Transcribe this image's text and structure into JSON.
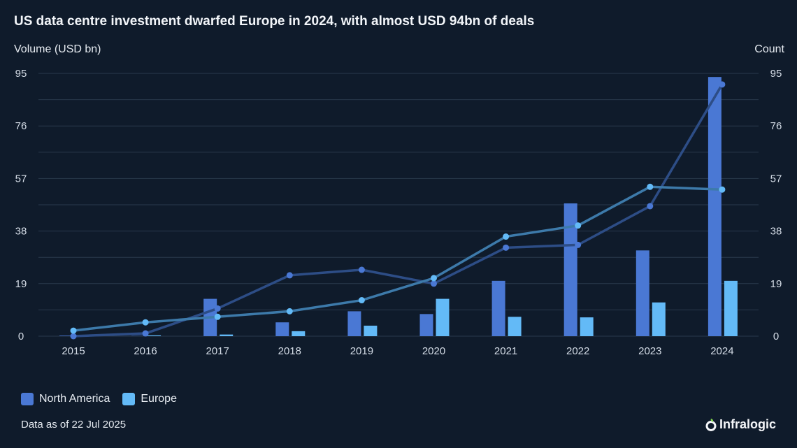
{
  "title": "US data centre investment dwarfed Europe in 2024, with almost USD 94bn of deals",
  "footnote": "Data as of 22 Jul 2025",
  "brand": "Infralogic",
  "colors": {
    "background": "#0f1b2b",
    "grid": "#2a3a4d",
    "north_america_bar": "#4a78d4",
    "europe_bar": "#63baf7",
    "north_america_line": "#2d4d86",
    "europe_line": "#3d7aaa",
    "north_america_point": "#4a78d4",
    "europe_point": "#63baf7"
  },
  "chart_data": {
    "type": "bar",
    "x": [
      2015,
      2016,
      2017,
      2018,
      2019,
      2020,
      2021,
      2022,
      2023,
      2024
    ],
    "ylabel": "Volume (USD bn)",
    "y2label": "Count",
    "ylim": [
      0,
      95
    ],
    "y2lim": [
      0,
      95
    ],
    "yticks": [
      0,
      19,
      38,
      57,
      76,
      95
    ],
    "y2ticks": [
      0,
      19,
      38,
      57,
      76,
      95
    ],
    "grid": true,
    "legend_position": "bottom-left",
    "series": [
      {
        "name": "North America",
        "type": "bar",
        "axis": "left",
        "values": [
          0.2,
          0.1,
          13.5,
          5.0,
          9.0,
          8.0,
          20.0,
          48.0,
          31.0,
          93.7
        ]
      },
      {
        "name": "Europe",
        "type": "bar",
        "axis": "left",
        "values": [
          0.4,
          0.3,
          0.6,
          1.8,
          3.8,
          13.5,
          7.0,
          6.8,
          12.2,
          20.0
        ]
      },
      {
        "type": "line",
        "axis": "right",
        "color_ref": "north_america_line",
        "values": [
          0,
          1,
          10,
          22,
          24,
          19,
          32,
          33,
          47,
          91
        ]
      },
      {
        "type": "line",
        "axis": "right",
        "color_ref": "europe_line",
        "values": [
          2,
          5,
          7,
          9,
          13,
          21,
          36,
          40,
          54,
          53
        ]
      }
    ]
  }
}
